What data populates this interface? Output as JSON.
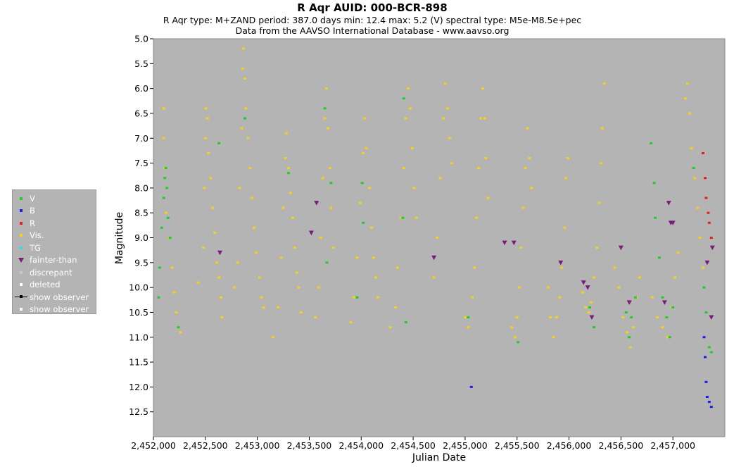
{
  "chart_data": {
    "type": "scatter",
    "title": "R Aqr   AUID: 000-BCR-898",
    "subtitle": "R Aqr   type: M+ZAND   period: 387.0 days   min: 12.4   max: 5.2 (V)   spectral type: M5e-M8.5e+pec",
    "source_note": "Data from the AAVSO International Database - www.aavso.org",
    "xlabel": "Julian Date",
    "ylabel": "Magnitude",
    "xlim": [
      2452000,
      2457500
    ],
    "ylim": [
      5.0,
      13.0
    ],
    "y_inverted": true,
    "x_ticks": [
      2452000,
      2452500,
      2453000,
      2453500,
      2454000,
      2454500,
      2455000,
      2455500,
      2456000,
      2456500,
      2457000
    ],
    "x_tick_labels": [
      "2,452,000",
      "2,452,500",
      "2,453,000",
      "2,453,500",
      "2,454,000",
      "2,454,500",
      "2,455,000",
      "2,455,500",
      "2,456,000",
      "2,456,500",
      "2,457,000"
    ],
    "y_ticks": [
      5.0,
      5.5,
      6.0,
      6.5,
      7.0,
      7.5,
      8.0,
      8.5,
      9.0,
      9.5,
      10.0,
      10.5,
      11.0,
      11.5,
      12.0,
      12.5
    ],
    "y_tick_labels": [
      "5.0",
      "5.5",
      "6.0",
      "6.5",
      "7.0",
      "7.5",
      "8.0",
      "8.5",
      "9.0",
      "9.5",
      "10.0",
      "10.5",
      "11.0",
      "11.5",
      "12.0",
      "12.5"
    ],
    "grid": false,
    "background": "#b4b4b4",
    "legend_position": "left",
    "legend": [
      {
        "label": "V",
        "symbol": "square",
        "color": "#22cc22"
      },
      {
        "label": "B",
        "symbol": "square",
        "color": "#1a1aee"
      },
      {
        "label": "R",
        "symbol": "square",
        "color": "#ee1a1a"
      },
      {
        "label": "Vis.",
        "symbol": "square",
        "color": "#f2d21a"
      },
      {
        "label": "TG",
        "symbol": "square",
        "color": "#33dddd"
      },
      {
        "label": "fainter-than",
        "symbol": "triangle",
        "color": "#7a1a7a"
      },
      {
        "label": "discrepant",
        "symbol": "square",
        "color": "#c8c8c8"
      },
      {
        "label": "deleted",
        "symbol": "square",
        "color": "#ffffff"
      },
      {
        "label": "show observer",
        "symbol": "line",
        "color": "#000000"
      },
      {
        "label": "show observer",
        "symbol": "square",
        "color": "#ffffff"
      }
    ],
    "series": [
      {
        "name": "Vis.",
        "color": "#f2d21a",
        "points": [
          [
            2452100,
            6.4
          ],
          [
            2452100,
            7.0
          ],
          [
            2452110,
            7.6
          ],
          [
            2452120,
            8.5
          ],
          [
            2452150,
            9.0
          ],
          [
            2452180,
            9.6
          ],
          [
            2452200,
            10.1
          ],
          [
            2452220,
            10.5
          ],
          [
            2452240,
            10.8
          ],
          [
            2452260,
            10.9
          ],
          [
            2452430,
            9.9
          ],
          [
            2452480,
            9.2
          ],
          [
            2452490,
            8.0
          ],
          [
            2452500,
            7.0
          ],
          [
            2452505,
            6.4
          ],
          [
            2452520,
            6.6
          ],
          [
            2452530,
            7.3
          ],
          [
            2452550,
            7.8
          ],
          [
            2452570,
            8.4
          ],
          [
            2452590,
            8.9
          ],
          [
            2452610,
            9.5
          ],
          [
            2452630,
            9.8
          ],
          [
            2452650,
            10.2
          ],
          [
            2452660,
            10.6
          ],
          [
            2452780,
            10.0
          ],
          [
            2452810,
            9.5
          ],
          [
            2452830,
            8.0
          ],
          [
            2452850,
            6.8
          ],
          [
            2452860,
            5.6
          ],
          [
            2452865,
            5.2
          ],
          [
            2452880,
            5.8
          ],
          [
            2452890,
            6.4
          ],
          [
            2452910,
            7.0
          ],
          [
            2452930,
            7.6
          ],
          [
            2452950,
            8.2
          ],
          [
            2452970,
            8.8
          ],
          [
            2452990,
            9.3
          ],
          [
            2453020,
            9.8
          ],
          [
            2453040,
            10.2
          ],
          [
            2453060,
            10.4
          ],
          [
            2453150,
            11.0
          ],
          [
            2453200,
            10.4
          ],
          [
            2453230,
            9.4
          ],
          [
            2453250,
            8.4
          ],
          [
            2453270,
            7.4
          ],
          [
            2453280,
            6.9
          ],
          [
            2453300,
            7.6
          ],
          [
            2453320,
            8.1
          ],
          [
            2453340,
            8.6
          ],
          [
            2453360,
            9.2
          ],
          [
            2453380,
            9.7
          ],
          [
            2453400,
            10.0
          ],
          [
            2453420,
            10.5
          ],
          [
            2453560,
            10.6
          ],
          [
            2453590,
            10.0
          ],
          [
            2453610,
            9.0
          ],
          [
            2453630,
            7.8
          ],
          [
            2453650,
            6.6
          ],
          [
            2453665,
            6.0
          ],
          [
            2453680,
            6.8
          ],
          [
            2453700,
            7.6
          ],
          [
            2453710,
            8.4
          ],
          [
            2453730,
            9.2
          ],
          [
            2453900,
            10.7
          ],
          [
            2453930,
            10.2
          ],
          [
            2453960,
            9.4
          ],
          [
            2453990,
            8.3
          ],
          [
            2454020,
            7.3
          ],
          [
            2454030,
            6.6
          ],
          [
            2454050,
            7.2
          ],
          [
            2454080,
            8.0
          ],
          [
            2454100,
            8.8
          ],
          [
            2454120,
            9.4
          ],
          [
            2454140,
            9.8
          ],
          [
            2454160,
            10.2
          ],
          [
            2454280,
            10.8
          ],
          [
            2454330,
            10.4
          ],
          [
            2454350,
            9.6
          ],
          [
            2454380,
            8.6
          ],
          [
            2454410,
            7.6
          ],
          [
            2454430,
            6.6
          ],
          [
            2454450,
            6.0
          ],
          [
            2454470,
            6.4
          ],
          [
            2454490,
            7.2
          ],
          [
            2454510,
            8.0
          ],
          [
            2454530,
            8.6
          ],
          [
            2454700,
            9.8
          ],
          [
            2454730,
            9.0
          ],
          [
            2454760,
            7.8
          ],
          [
            2454790,
            6.6
          ],
          [
            2454810,
            5.9
          ],
          [
            2454830,
            6.4
          ],
          [
            2454850,
            7.0
          ],
          [
            2454870,
            7.5
          ],
          [
            2455000,
            10.6
          ],
          [
            2455030,
            10.8
          ],
          [
            2455070,
            10.2
          ],
          [
            2455090,
            9.6
          ],
          [
            2455110,
            8.6
          ],
          [
            2455130,
            7.6
          ],
          [
            2455150,
            6.6
          ],
          [
            2455170,
            6.0
          ],
          [
            2455190,
            6.6
          ],
          [
            2455200,
            7.4
          ],
          [
            2455220,
            8.2
          ],
          [
            2455450,
            10.8
          ],
          [
            2455480,
            11.0
          ],
          [
            2455500,
            10.6
          ],
          [
            2455520,
            10.0
          ],
          [
            2455540,
            9.2
          ],
          [
            2455560,
            8.4
          ],
          [
            2455580,
            7.6
          ],
          [
            2455600,
            6.8
          ],
          [
            2455620,
            7.4
          ],
          [
            2455640,
            8.0
          ],
          [
            2455800,
            10.0
          ],
          [
            2455820,
            10.6
          ],
          [
            2455850,
            11.0
          ],
          [
            2455880,
            10.6
          ],
          [
            2455910,
            10.2
          ],
          [
            2455930,
            9.6
          ],
          [
            2455960,
            8.8
          ],
          [
            2455970,
            7.8
          ],
          [
            2455990,
            7.4
          ],
          [
            2456130,
            10.1
          ],
          [
            2456160,
            10.4
          ],
          [
            2456190,
            10.5
          ],
          [
            2456210,
            10.3
          ],
          [
            2456240,
            9.8
          ],
          [
            2456270,
            9.2
          ],
          [
            2456290,
            8.3
          ],
          [
            2456310,
            7.5
          ],
          [
            2456320,
            6.8
          ],
          [
            2456340,
            5.9
          ],
          [
            2456440,
            9.6
          ],
          [
            2456480,
            10.0
          ],
          [
            2456520,
            10.6
          ],
          [
            2456560,
            10.9
          ],
          [
            2456590,
            11.2
          ],
          [
            2456620,
            10.8
          ],
          [
            2456650,
            10.2
          ],
          [
            2456680,
            9.8
          ],
          [
            2456800,
            10.2
          ],
          [
            2456850,
            10.6
          ],
          [
            2456900,
            10.8
          ],
          [
            2456950,
            11.0
          ],
          [
            2456990,
            10.4
          ],
          [
            2457020,
            9.8
          ],
          [
            2457050,
            9.3
          ],
          [
            2457120,
            6.2
          ],
          [
            2457140,
            5.9
          ],
          [
            2457160,
            6.5
          ],
          [
            2457180,
            7.2
          ],
          [
            2457210,
            7.8
          ],
          [
            2457240,
            8.4
          ],
          [
            2457260,
            9.0
          ],
          [
            2457290,
            9.6
          ]
        ]
      },
      {
        "name": "V",
        "color": "#22cc22",
        "points": [
          [
            2452050,
            10.2
          ],
          [
            2452060,
            9.6
          ],
          [
            2452080,
            8.8
          ],
          [
            2452100,
            8.2
          ],
          [
            2452110,
            7.8
          ],
          [
            2452120,
            7.6
          ],
          [
            2452130,
            8.0
          ],
          [
            2452140,
            8.6
          ],
          [
            2452160,
            9.0
          ],
          [
            2452240,
            10.8
          ],
          [
            2452630,
            7.1
          ],
          [
            2452880,
            6.6
          ],
          [
            2453300,
            7.7
          ],
          [
            2453650,
            6.4
          ],
          [
            2453710,
            7.9
          ],
          [
            2453670,
            9.5
          ],
          [
            2453960,
            10.2
          ],
          [
            2454010,
            7.9
          ],
          [
            2454020,
            8.7
          ],
          [
            2454410,
            6.2
          ],
          [
            2454400,
            8.6
          ],
          [
            2454430,
            10.7
          ],
          [
            2455030,
            10.6
          ],
          [
            2455510,
            11.1
          ],
          [
            2456200,
            10.4
          ],
          [
            2456240,
            10.8
          ],
          [
            2456550,
            10.5
          ],
          [
            2456580,
            11.0
          ],
          [
            2456600,
            10.6
          ],
          [
            2456640,
            10.2
          ],
          [
            2456790,
            7.1
          ],
          [
            2456820,
            7.9
          ],
          [
            2456830,
            8.6
          ],
          [
            2456870,
            9.4
          ],
          [
            2456900,
            10.2
          ],
          [
            2456940,
            10.6
          ],
          [
            2456970,
            11.0
          ],
          [
            2457000,
            10.4
          ],
          [
            2457200,
            7.6
          ],
          [
            2457300,
            10.0
          ],
          [
            2457320,
            10.5
          ],
          [
            2457350,
            11.2
          ],
          [
            2457370,
            11.3
          ]
        ]
      },
      {
        "name": "B",
        "color": "#1a1aee",
        "points": [
          [
            2455060,
            12.0
          ],
          [
            2457300,
            11.0
          ],
          [
            2457310,
            11.4
          ],
          [
            2457320,
            11.9
          ],
          [
            2457330,
            12.2
          ],
          [
            2457350,
            12.3
          ],
          [
            2457370,
            12.4
          ]
        ]
      },
      {
        "name": "R",
        "color": "#ee1a1a",
        "points": [
          [
            2457290,
            7.3
          ],
          [
            2457310,
            7.8
          ],
          [
            2457320,
            8.2
          ],
          [
            2457340,
            8.5
          ],
          [
            2457350,
            8.7
          ],
          [
            2457370,
            9.0
          ]
        ]
      },
      {
        "name": "fainter-than",
        "color": "#7a1a7a",
        "points": [
          [
            2452640,
            9.3
          ],
          [
            2453520,
            8.9
          ],
          [
            2453570,
            8.3
          ],
          [
            2454700,
            9.4
          ],
          [
            2455380,
            9.1
          ],
          [
            2455470,
            9.1
          ],
          [
            2455920,
            9.5
          ],
          [
            2456140,
            9.9
          ],
          [
            2456180,
            10.0
          ],
          [
            2456220,
            10.6
          ],
          [
            2456500,
            9.2
          ],
          [
            2456580,
            10.3
          ],
          [
            2456920,
            10.3
          ],
          [
            2456960,
            8.3
          ],
          [
            2456980,
            8.7
          ],
          [
            2457000,
            8.7
          ],
          [
            2457330,
            9.5
          ],
          [
            2457380,
            9.2
          ],
          [
            2457370,
            10.6
          ]
        ]
      }
    ]
  }
}
